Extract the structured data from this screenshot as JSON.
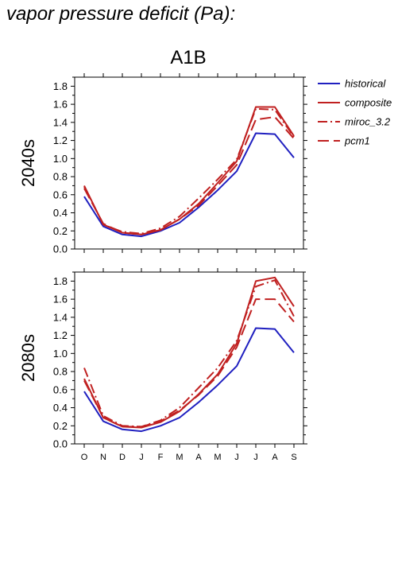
{
  "page": {
    "title": "vapor pressure deficit (Pa):"
  },
  "chart_data": {
    "type": "line",
    "title": "A1B",
    "categories": [
      "O",
      "N",
      "D",
      "J",
      "F",
      "M",
      "A",
      "M",
      "J",
      "J",
      "A",
      "S"
    ],
    "ylim": [
      0,
      1.9
    ],
    "yticks": [
      "0.0",
      "0.2",
      "0.4",
      "0.6",
      "0.8",
      "1.0",
      "1.2",
      "1.4",
      "1.6",
      "1.8"
    ],
    "legend_position": "right",
    "grid": false,
    "legend": [
      {
        "name": "historical",
        "color": "#2020c0",
        "dash": "solid"
      },
      {
        "name": "composite",
        "color": "#c02020",
        "dash": "solid"
      },
      {
        "name": "miroc_3.2",
        "color": "#c02020",
        "dash": "dashdot"
      },
      {
        "name": "pcm1",
        "color": "#c02020",
        "dash": "dashed"
      }
    ],
    "panels": [
      {
        "label": "2040s",
        "series": [
          {
            "name": "historical",
            "values": [
              0.58,
              0.25,
              0.16,
              0.14,
              0.2,
              0.29,
              0.46,
              0.65,
              0.86,
              1.28,
              1.27,
              1.01
            ]
          },
          {
            "name": "composite",
            "values": [
              0.7,
              0.27,
              0.18,
              0.16,
              0.21,
              0.33,
              0.5,
              0.73,
              0.97,
              1.57,
              1.57,
              1.25
            ]
          },
          {
            "name": "miroc_3.2",
            "values": [
              0.69,
              0.27,
              0.19,
              0.17,
              0.23,
              0.36,
              0.56,
              0.77,
              0.99,
              1.55,
              1.54,
              1.24
            ]
          },
          {
            "name": "pcm1",
            "values": [
              0.67,
              0.28,
              0.18,
              0.16,
              0.21,
              0.33,
              0.48,
              0.7,
              0.93,
              1.43,
              1.46,
              1.22
            ]
          }
        ]
      },
      {
        "label": "2080s",
        "series": [
          {
            "name": "historical",
            "values": [
              0.58,
              0.25,
              0.16,
              0.14,
              0.2,
              0.29,
              0.46,
              0.65,
              0.86,
              1.28,
              1.27,
              1.01
            ]
          },
          {
            "name": "composite",
            "values": [
              0.72,
              0.29,
              0.19,
              0.18,
              0.24,
              0.36,
              0.55,
              0.77,
              1.11,
              1.8,
              1.84,
              1.52
            ]
          },
          {
            "name": "miroc_3.2",
            "values": [
              0.84,
              0.31,
              0.2,
              0.19,
              0.26,
              0.4,
              0.62,
              0.84,
              1.14,
              1.74,
              1.81,
              1.41
            ]
          },
          {
            "name": "pcm1",
            "values": [
              0.7,
              0.29,
              0.19,
              0.19,
              0.25,
              0.37,
              0.54,
              0.75,
              1.07,
              1.6,
              1.6,
              1.35
            ]
          }
        ]
      }
    ]
  }
}
